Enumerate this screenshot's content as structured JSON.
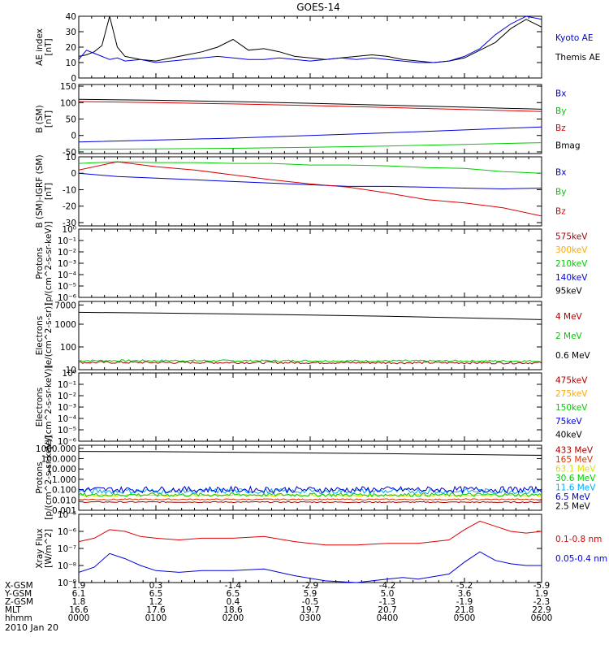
{
  "title": "GOES-14",
  "date_label": "2010 Jan 20",
  "time_axis": {
    "rows": [
      {
        "label": "X-GSM",
        "values": [
          "1.9",
          "0.3",
          "-1.4",
          "-2.9",
          "-4.2",
          "-5.2",
          "-5.9"
        ]
      },
      {
        "label": "Y-GSM",
        "values": [
          "6.1",
          "6.5",
          "6.5",
          "5.9",
          "5.0",
          "3.6",
          "1.9"
        ]
      },
      {
        "label": "Z-GSM",
        "values": [
          "1.8",
          "1.2",
          "0.4",
          "-0.5",
          "-1.3",
          "-1.9",
          "-2.3"
        ]
      },
      {
        "label": "MLT",
        "values": [
          "16.6",
          "17.6",
          "18.6",
          "19.7",
          "20.7",
          "21.8",
          "22.9"
        ]
      },
      {
        "label": "hhmm",
        "values": [
          "0000",
          "0100",
          "0200",
          "0300",
          "0400",
          "0500",
          "0600"
        ]
      }
    ]
  },
  "colors": {
    "black": "#000000",
    "blue": "#0000dd",
    "green": "#00cc00",
    "red": "#dd0000",
    "darkred": "#aa0000",
    "orange": "#ffaa00",
    "yellow": "#dddd00",
    "cyan": "#00aaff",
    "blue2": "#0000cc",
    "crimson": "#cc0000"
  },
  "chart_data": [
    {
      "id": "ae",
      "type": "line",
      "ylabel": "AE index\n[nT]",
      "ylim": [
        0,
        40
      ],
      "scale": "linear",
      "yticks": [
        {
          "v": 0,
          "t": "0"
        },
        {
          "v": 10,
          "t": "10"
        },
        {
          "v": 20,
          "t": "20"
        },
        {
          "v": 30,
          "t": "30"
        },
        {
          "v": 40,
          "t": "40"
        }
      ],
      "legend": [
        {
          "name": "Kyoto AE",
          "color": "#0000dd"
        },
        {
          "name": "Themis AE",
          "color": "#000000"
        }
      ],
      "series": [
        {
          "name": "Themis AE",
          "color": "#000000",
          "x": [
            0,
            0.1,
            0.2,
            0.3,
            0.4,
            0.5,
            0.6,
            0.7,
            0.8,
            1.0,
            1.2,
            1.4,
            1.6,
            1.8,
            2.0,
            2.2,
            2.4,
            2.6,
            2.8,
            3.0,
            3.2,
            3.4,
            3.6,
            3.8,
            4.0,
            4.2,
            4.4,
            4.6,
            4.8,
            5.0,
            5.2,
            5.4,
            5.6,
            5.8,
            6.0
          ],
          "y": [
            14,
            15,
            17,
            21,
            40,
            20,
            14,
            13,
            12,
            11,
            13,
            15,
            17,
            20,
            25,
            18,
            19,
            17,
            14,
            13,
            12,
            13,
            14,
            15,
            14,
            12,
            11,
            10,
            11,
            13,
            18,
            23,
            32,
            38,
            33
          ]
        },
        {
          "name": "Kyoto AE",
          "color": "#0000dd",
          "x": [
            0,
            0.1,
            0.2,
            0.3,
            0.4,
            0.5,
            0.6,
            0.8,
            1.0,
            1.2,
            1.4,
            1.6,
            1.8,
            2.0,
            2.2,
            2.4,
            2.6,
            2.8,
            3.0,
            3.2,
            3.4,
            3.6,
            3.8,
            4.0,
            4.2,
            4.4,
            4.6,
            4.8,
            5.0,
            5.2,
            5.4,
            5.6,
            5.8,
            6.0
          ],
          "y": [
            12,
            18,
            16,
            14,
            12,
            13,
            11,
            12,
            10,
            11,
            12,
            13,
            14,
            13,
            12,
            12,
            13,
            12,
            11,
            12,
            13,
            12,
            13,
            12,
            11,
            10,
            10,
            11,
            14,
            19,
            28,
            35,
            40,
            38
          ]
        }
      ]
    },
    {
      "id": "bsm",
      "type": "line",
      "ylabel": "B (SM)\n[nT]",
      "ylim": [
        -55,
        155
      ],
      "scale": "linear",
      "yticks": [
        {
          "v": -50,
          "t": "-50"
        },
        {
          "v": 0,
          "t": "0"
        },
        {
          "v": 50,
          "t": "50"
        },
        {
          "v": 100,
          "t": "100"
        },
        {
          "v": 150,
          "t": "150"
        }
      ],
      "legend": [
        {
          "name": "Bx",
          "color": "#0000dd"
        },
        {
          "name": "By",
          "color": "#00cc00"
        },
        {
          "name": "Bz",
          "color": "#dd0000"
        },
        {
          "name": "Bmag",
          "color": "#000000"
        }
      ],
      "series": [
        {
          "name": "Bmag",
          "color": "#000000",
          "x": [
            0,
            1,
            2,
            3,
            4,
            5,
            6
          ],
          "y": [
            110,
            107,
            103,
            98,
            92,
            86,
            80
          ]
        },
        {
          "name": "Bz",
          "color": "#dd0000",
          "x": [
            0,
            1,
            2,
            3,
            4,
            5,
            6
          ],
          "y": [
            103,
            100,
            96,
            91,
            85,
            79,
            73
          ]
        },
        {
          "name": "Bx",
          "color": "#0000dd",
          "x": [
            0,
            1,
            2,
            3,
            4,
            5,
            6
          ],
          "y": [
            -20,
            -14,
            -8,
            0,
            8,
            17,
            26
          ]
        },
        {
          "name": "By",
          "color": "#00cc00",
          "x": [
            0,
            1,
            2,
            3,
            4,
            5,
            6
          ],
          "y": [
            -42,
            -41,
            -39,
            -36,
            -32,
            -27,
            -22
          ]
        }
      ]
    },
    {
      "id": "bigrf",
      "type": "line",
      "ylabel": "B (SM)-IGRF (SM)\n[nT]",
      "ylim": [
        -32,
        10
      ],
      "scale": "linear",
      "yticks": [
        {
          "v": -30,
          "t": "-30"
        },
        {
          "v": -20,
          "t": "-20"
        },
        {
          "v": -10,
          "t": "-10"
        },
        {
          "v": 0,
          "t": "0"
        },
        {
          "v": 10,
          "t": "10"
        }
      ],
      "legend": [
        {
          "name": "Bx",
          "color": "#0000dd"
        },
        {
          "name": "By",
          "color": "#00cc00"
        },
        {
          "name": "Bz",
          "color": "#dd0000"
        }
      ],
      "series": [
        {
          "name": "By",
          "color": "#00cc00",
          "x": [
            0,
            0.5,
            1,
            1.5,
            2,
            2.5,
            3,
            3.5,
            4,
            4.5,
            5,
            5.5,
            6
          ],
          "y": [
            6,
            7,
            6.5,
            6.5,
            6,
            6,
            5,
            5,
            4.5,
            3.5,
            3,
            1,
            0
          ]
        },
        {
          "name": "Bx",
          "color": "#0000dd",
          "x": [
            0,
            0.5,
            1,
            1.5,
            2,
            2.5,
            3,
            3.5,
            4,
            4.5,
            5,
            5.5,
            6
          ],
          "y": [
            0,
            -2,
            -3,
            -4,
            -5,
            -6,
            -7,
            -8,
            -8,
            -8.5,
            -9,
            -9.5,
            -9
          ]
        },
        {
          "name": "Bz",
          "color": "#dd0000",
          "x": [
            0,
            0.5,
            1,
            1.5,
            2,
            2.5,
            3,
            3.5,
            4,
            4.5,
            5,
            5.5,
            6
          ],
          "y": [
            2,
            7,
            4,
            2,
            -1,
            -4,
            -6.5,
            -8.5,
            -12,
            -16,
            -18,
            -21,
            -26
          ]
        }
      ]
    },
    {
      "id": "protons_magped",
      "type": "line",
      "ylabel": "Protons\n[p/(cm^2-s-sr-keV)]",
      "ylim": [
        -6,
        0
      ],
      "scale": "log",
      "yticks": [
        {
          "v": -6,
          "t": "10⁻⁶"
        },
        {
          "v": -5,
          "t": "10⁻⁵"
        },
        {
          "v": -4,
          "t": "10⁻⁴"
        },
        {
          "v": -3,
          "t": "10⁻³"
        },
        {
          "v": -2,
          "t": "10⁻²"
        },
        {
          "v": -1,
          "t": "10⁻¹"
        },
        {
          "v": 0,
          "t": "10⁰"
        }
      ],
      "legend": [
        {
          "name": "575keV",
          "color": "#aa0000"
        },
        {
          "name": "300keV",
          "color": "#ffaa00"
        },
        {
          "name": "210keV",
          "color": "#00cc00"
        },
        {
          "name": "140keV",
          "color": "#0000dd"
        },
        {
          "name": "95keV",
          "color": "#000000"
        }
      ],
      "series": []
    },
    {
      "id": "electrons_eps",
      "type": "line",
      "ylabel": "Electrons\n[e/(cm^2-s-sr)]",
      "ylim": [
        1,
        4
      ],
      "scale": "log",
      "yticks": [
        {
          "v": 1,
          "t": "10"
        },
        {
          "v": 2,
          "t": "100"
        },
        {
          "v": 3,
          "t": "1000"
        },
        {
          "v": 3.845,
          "t": "7000"
        }
      ],
      "legend": [
        {
          "name": "4 MeV",
          "color": "#aa0000"
        },
        {
          "name": "2 MeV",
          "color": "#00cc00"
        },
        {
          "name": "0.6 MeV",
          "color": "#000000"
        }
      ],
      "series": [
        {
          "name": "0.6 MeV",
          "color": "#000000",
          "x": [
            0,
            1,
            2,
            3,
            4,
            5,
            6
          ],
          "y": [
            3.52,
            3.49,
            3.45,
            3.4,
            3.35,
            3.28,
            3.2
          ]
        },
        {
          "name": "2 MeV",
          "color": "#00cc00",
          "x": [
            0,
            6
          ],
          "y": [
            1.4,
            1.38
          ],
          "noise": 0.04
        },
        {
          "name": "4 MeV",
          "color": "#aa0000",
          "x": [
            0,
            6
          ],
          "y": [
            1.32,
            1.3
          ],
          "noise": 0.05
        }
      ]
    },
    {
      "id": "electrons_maged",
      "type": "line",
      "ylabel": "Electrons\n[e/(cm^2-s-sr-keV)]",
      "ylim": [
        -6,
        0
      ],
      "scale": "log",
      "yticks": [
        {
          "v": -6,
          "t": "10⁻⁶"
        },
        {
          "v": -5,
          "t": "10⁻⁵"
        },
        {
          "v": -4,
          "t": "10⁻⁴"
        },
        {
          "v": -3,
          "t": "10⁻³"
        },
        {
          "v": -2,
          "t": "10⁻²"
        },
        {
          "v": -1,
          "t": "10⁻¹"
        },
        {
          "v": 0,
          "t": "10⁰"
        }
      ],
      "legend": [
        {
          "name": "475keV",
          "color": "#aa0000"
        },
        {
          "name": "275keV",
          "color": "#ffaa00"
        },
        {
          "name": "150keV",
          "color": "#00cc00"
        },
        {
          "name": "75keV",
          "color": "#0000dd"
        },
        {
          "name": "40keV",
          "color": "#000000"
        }
      ],
      "series": []
    },
    {
      "id": "protons_eps",
      "type": "line",
      "ylabel": "Protons\n[p/(cm^2-s-sr-keV)]",
      "ylim": [
        -3,
        3.3
      ],
      "scale": "log",
      "yticks": [
        {
          "v": -3,
          "t": "0.001"
        },
        {
          "v": -2,
          "t": "0.010"
        },
        {
          "v": -1,
          "t": "0.100"
        },
        {
          "v": 0,
          "t": "1.000"
        },
        {
          "v": 1,
          "t": "10.000"
        },
        {
          "v": 2,
          "t": "100.000"
        },
        {
          "v": 3,
          "t": "1000.000"
        }
      ],
      "legend": [
        {
          "name": "433 MeV",
          "color": "#aa0000"
        },
        {
          "name": "165 MeV",
          "color": "#dd3300"
        },
        {
          "name": "63.1 MeV",
          "color": "#dddd00"
        },
        {
          "name": "30.6 MeV",
          "color": "#00cc00"
        },
        {
          "name": "11.6 MeV",
          "color": "#00aaff"
        },
        {
          "name": "6.5 MeV",
          "color": "#0000cc"
        },
        {
          "name": "2.5 MeV",
          "color": "#000000"
        }
      ],
      "series": [
        {
          "name": "2.5 MeV",
          "color": "#000000",
          "x": [
            0,
            1,
            2,
            3,
            4,
            5,
            6
          ],
          "y": [
            2.7,
            2.68,
            2.62,
            2.55,
            2.48,
            2.4,
            2.32
          ]
        },
        {
          "name": "433 MeV",
          "color": "#aa0000",
          "x": [
            0,
            6
          ],
          "y": [
            -2.2,
            -2.22
          ],
          "noise": 0.05
        },
        {
          "name": "165 MeV",
          "color": "#dd3300",
          "x": [
            0,
            6
          ],
          "y": [
            -1.95,
            -1.95
          ],
          "noise": 0.06
        },
        {
          "name": "63.1 MeV",
          "color": "#dddd00",
          "x": [
            0,
            6
          ],
          "y": [
            -1.55,
            -1.55
          ],
          "noise": 0.08
        },
        {
          "name": "30.6 MeV",
          "color": "#00cc00",
          "x": [
            0,
            6
          ],
          "y": [
            -1.5,
            -1.5
          ],
          "noise": 0.18
        },
        {
          "name": "11.6 MeV",
          "color": "#00aaff",
          "x": [
            0,
            6
          ],
          "y": [
            -1.15,
            -1.15
          ],
          "noise": 0.25
        },
        {
          "name": "6.5 MeV",
          "color": "#0000cc",
          "x": [
            0,
            6
          ],
          "y": [
            -1.0,
            -1.0
          ],
          "noise": 0.3
        }
      ]
    },
    {
      "id": "xray",
      "type": "line",
      "ylabel": "Xray Flux\n[W/m^2]",
      "ylim": [
        -9,
        -5
      ],
      "scale": "log",
      "yticks": [
        {
          "v": -9,
          "t": "10⁻⁹"
        },
        {
          "v": -8,
          "t": "10⁻⁸"
        },
        {
          "v": -7,
          "t": "10⁻⁷"
        },
        {
          "v": -6,
          "t": "10⁻⁶"
        },
        {
          "v": -5,
          "t": "10⁻⁵"
        }
      ],
      "legend": [
        {
          "name": "0.1-0.8 nm",
          "color": "#dd0000"
        },
        {
          "name": "0.05-0.4 nm",
          "color": "#0000dd"
        }
      ],
      "series": [
        {
          "name": "0.1-0.8 nm",
          "color": "#dd0000",
          "x": [
            0,
            0.2,
            0.4,
            0.6,
            0.8,
            1.0,
            1.3,
            1.6,
            2.0,
            2.4,
            2.8,
            3.2,
            3.6,
            4.0,
            4.4,
            4.8,
            5.0,
            5.2,
            5.4,
            5.6,
            5.8,
            6.0
          ],
          "y": [
            -6.6,
            -6.4,
            -5.9,
            -6.0,
            -6.3,
            -6.4,
            -6.5,
            -6.4,
            -6.4,
            -6.3,
            -6.6,
            -6.8,
            -6.8,
            -6.7,
            -6.7,
            -6.5,
            -5.9,
            -5.4,
            -5.7,
            -6.0,
            -6.1,
            -6.0
          ]
        },
        {
          "name": "0.05-0.4 nm",
          "color": "#0000dd",
          "x": [
            0,
            0.2,
            0.4,
            0.6,
            0.8,
            1.0,
            1.3,
            1.6,
            2.0,
            2.4,
            2.8,
            3.2,
            3.6,
            3.8,
            4.0,
            4.2,
            4.4,
            4.8,
            5.0,
            5.2,
            5.4,
            5.6,
            5.8,
            6.0
          ],
          "y": [
            -8.4,
            -8.1,
            -7.3,
            -7.6,
            -8.0,
            -8.3,
            -8.4,
            -8.3,
            -8.3,
            -8.2,
            -8.6,
            -8.9,
            -9.0,
            -8.9,
            -8.8,
            -8.7,
            -8.8,
            -8.5,
            -7.8,
            -7.2,
            -7.7,
            -7.9,
            -8.0,
            -8.0
          ]
        }
      ]
    }
  ]
}
